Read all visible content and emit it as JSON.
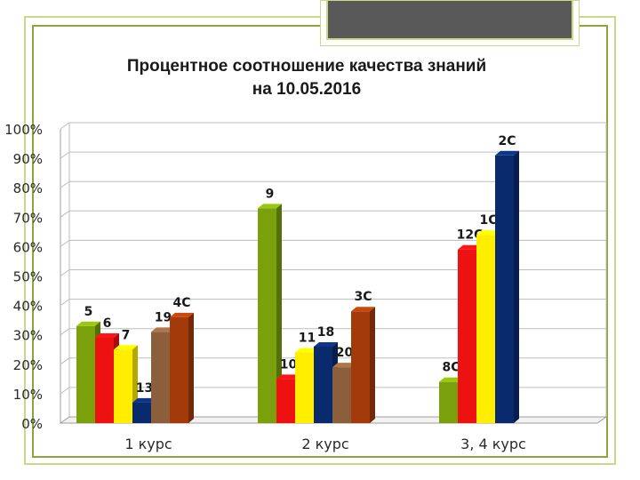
{
  "title_line1": "Процентное соотношение качества знаний",
  "title_line2": "на 10.05.2016",
  "chart_data": {
    "type": "bar",
    "ylim": [
      0,
      100
    ],
    "y_ticks": [
      "0%",
      "10%",
      "20%",
      "30%",
      "40%",
      "50%",
      "60%",
      "70%",
      "80%",
      "90%",
      "100%"
    ],
    "grid": true,
    "groups": [
      {
        "category": "1 курс",
        "bars": [
          {
            "label": "5",
            "value": 33,
            "color": "#7aa00c"
          },
          {
            "label": "6",
            "value": 29,
            "color": "#ee1111"
          },
          {
            "label": "7",
            "value": 25,
            "color": "#ffee00"
          },
          {
            "label": "13",
            "value": 7,
            "color": "#0a2a6e"
          },
          {
            "label": "19",
            "value": 31,
            "color": "#8b5e3c"
          },
          {
            "label": "4С",
            "value": 36,
            "color": "#a33a0a"
          }
        ]
      },
      {
        "category": "2 курс",
        "bars": [
          {
            "label": "9",
            "value": 73,
            "color": "#7aa00c"
          },
          {
            "label": "10",
            "value": 15,
            "color": "#ee1111"
          },
          {
            "label": "11",
            "value": 24,
            "color": "#ffee00"
          },
          {
            "label": "18",
            "value": 26,
            "color": "#0a2a6e"
          },
          {
            "label": "20",
            "value": 19,
            "color": "#8b5e3c"
          },
          {
            "label": "3С",
            "value": 38,
            "color": "#a33a0a"
          }
        ]
      },
      {
        "category": "3, 4 курс",
        "bars": [
          {
            "label": "8С",
            "value": 14,
            "color": "#7aa00c"
          },
          {
            "label": "12С",
            "value": 59,
            "color": "#ee1111"
          },
          {
            "label": "1С",
            "value": 64,
            "color": "#ffee00"
          },
          {
            "label": "2С",
            "value": 91,
            "color": "#0a2a6e"
          }
        ]
      }
    ]
  }
}
